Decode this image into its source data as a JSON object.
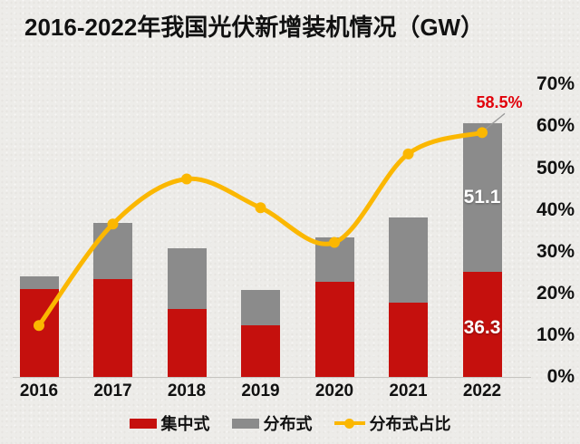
{
  "title": "2016-2022年我国光伏新增装机情况（GW）",
  "colors": {
    "centralized": "#C5100D",
    "distributed": "#8B8B8B",
    "ratio_line": "#FBB700",
    "annotation_red": "#E1000A",
    "background": "#EDECE9",
    "text": "#111111",
    "leader_line": "#999999"
  },
  "chart_data": {
    "type": "bar",
    "subtype": "stacked-bars-with-line",
    "title": "2016-2022年我国光伏新增装机情况（GW）",
    "categories": [
      "2016",
      "2017",
      "2018",
      "2019",
      "2020",
      "2021",
      "2022"
    ],
    "series": [
      {
        "name": "集中式",
        "type": "bar-stack",
        "color_key": "centralized",
        "values": [
          30.3,
          33.6,
          23.3,
          17.9,
          32.7,
          25.6,
          36.3
        ]
      },
      {
        "name": "分布式",
        "type": "bar-stack",
        "color_key": "distributed",
        "values": [
          4.2,
          19.4,
          21.0,
          12.2,
          15.5,
          29.3,
          51.1
        ]
      },
      {
        "name": "分布式占比",
        "type": "line",
        "axis": "percent",
        "color_key": "ratio_line",
        "values": [
          12.3,
          36.6,
          47.4,
          40.5,
          32.2,
          53.4,
          58.5
        ]
      }
    ],
    "right_axis": {
      "ticks": [
        "0%",
        "10%",
        "20%",
        "30%",
        "40%",
        "50%",
        "60%",
        "70%"
      ],
      "min": 0,
      "max": 70
    },
    "left_axis": {
      "visible": false,
      "unit": "GW"
    },
    "grid": "off",
    "legend_position": "bottom",
    "data_labels": {
      "centralized_2022": "36.3",
      "distributed_2022": "51.1",
      "ratio_2022": "58.5%"
    }
  },
  "legend": {
    "centralized": "集中式",
    "distributed": "分布式",
    "ratio": "分布式占比"
  }
}
